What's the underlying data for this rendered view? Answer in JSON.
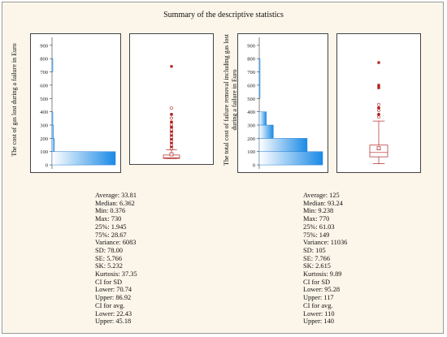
{
  "title": "Summary of the descriptive statistics",
  "chart_data": [
    {
      "type": "histogram",
      "ylabel": "The cost of gas lost during a failure in Euro",
      "yticks": [
        0,
        100,
        200,
        300,
        400,
        500,
        600,
        700,
        800,
        900
      ],
      "ylim": [
        -30,
        960
      ],
      "bins": [
        {
          "lo": 0,
          "hi": 100,
          "freq": 0.94
        },
        {
          "lo": 100,
          "hi": 200,
          "freq": 0.035
        },
        {
          "lo": 200,
          "hi": 300,
          "freq": 0.02
        },
        {
          "lo": 300,
          "hi": 400,
          "freq": 0.004
        },
        {
          "lo": 700,
          "hi": 800,
          "freq": 0.004
        }
      ]
    },
    {
      "type": "boxplot",
      "ylim": [
        -30,
        960
      ],
      "box": {
        "q1": 1.945,
        "median": 6.362,
        "q3": 28.67,
        "mean": 33.81,
        "whisker_low": 0.376,
        "whisker_high": 69
      },
      "outliers": [
        80,
        95,
        110,
        125,
        140,
        155,
        170,
        185,
        200,
        215,
        230,
        250,
        270,
        290,
        320,
        350,
        400,
        730
      ]
    },
    {
      "type": "histogram",
      "ylabel": "The total cost of failure removal including gas lost during a failure in Euro",
      "yticks": [
        0,
        100,
        200,
        300,
        400,
        500,
        600,
        700,
        800,
        900
      ],
      "ylim": [
        -30,
        960
      ],
      "bins": [
        {
          "lo": 0,
          "hi": 100,
          "freq": 0.45
        },
        {
          "lo": 100,
          "hi": 200,
          "freq": 0.34
        },
        {
          "lo": 200,
          "hi": 300,
          "freq": 0.1
        },
        {
          "lo": 300,
          "hi": 400,
          "freq": 0.05
        },
        {
          "lo": 500,
          "hi": 600,
          "freq": 0.004
        },
        {
          "lo": 600,
          "hi": 700,
          "freq": 0.004
        },
        {
          "lo": 700,
          "hi": 800,
          "freq": 0.004
        }
      ]
    },
    {
      "type": "boxplot",
      "ylim": [
        -30,
        960
      ],
      "box": {
        "q1": 61.03,
        "median": 93.24,
        "q3": 149,
        "mean": 125,
        "whisker_low": 9.238,
        "whisker_high": 330
      },
      "outliers": [
        360,
        380,
        410,
        430,
        455,
        580,
        590,
        600,
        770
      ]
    }
  ],
  "stats_left": [
    "Average: 33.81",
    "Median: 6.362",
    "Min: 0.376",
    "Max: 730",
    "25%: 1.945",
    "75%: 28.67",
    "Variance: 6083",
    "SD: 78.00",
    "SE: 5.766",
    "SK: 5.232",
    "Kurtosis: 37.35",
    "CI for SD",
    "Lower: 70.74",
    "Upper: 86.92",
    "CI for avg.",
    "Lower: 22.43",
    "Upper: 45.18"
  ],
  "stats_right": [
    "Average: 125",
    "Median: 93.24",
    "Min: 9.238",
    "Max: 770",
    "25%: 61.03",
    "75%: 149",
    "Variance: 11036",
    "SD: 105",
    "SE: 7.766",
    "SK: 2.615",
    "Kurtosis: 9.89",
    "CI for SD",
    "Lower: 95.28",
    "Upper: 117",
    "CI for avg.",
    "Lower: 110",
    "Upper: 140"
  ],
  "colors": {
    "bar_edge": "#2a7fd4",
    "box_color": "#b22222",
    "background": "#fcf6ea"
  }
}
